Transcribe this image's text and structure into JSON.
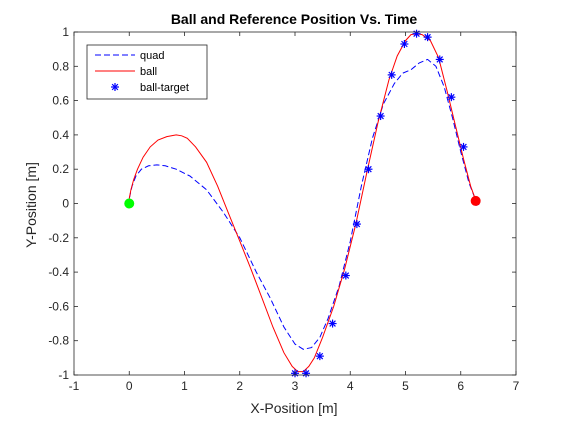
{
  "chart_data": {
    "type": "line",
    "title": "Ball and Reference Position Vs. Time",
    "xlabel": "X-Position [m]",
    "ylabel": "Y-Position [m]",
    "xlim": [
      -1,
      7
    ],
    "ylim": [
      -1,
      1
    ],
    "xticks": [
      -1,
      0,
      1,
      2,
      3,
      4,
      5,
      6,
      7
    ],
    "yticks": [
      -1,
      -0.8,
      -0.6,
      -0.4,
      -0.2,
      0,
      0.2,
      0.4,
      0.6,
      0.8,
      1
    ],
    "xtick_labels": [
      "-1",
      "0",
      "1",
      "2",
      "3",
      "4",
      "5",
      "6",
      "7"
    ],
    "ytick_labels": [
      "-1",
      "-0.8",
      "-0.6",
      "-0.4",
      "-0.2",
      "0",
      "0.2",
      "0.4",
      "0.6",
      "0.8",
      "1"
    ],
    "grid": false,
    "legend_position": "top-left",
    "series": [
      {
        "name": "quad",
        "style": "dashed",
        "color": "#0000ff",
        "x": [
          0,
          0.05,
          0.12,
          0.22,
          0.35,
          0.5,
          0.65,
          0.85,
          1.1,
          1.4,
          1.7,
          2.0,
          2.3,
          2.55,
          2.8,
          3.0,
          3.15,
          3.3,
          3.45,
          3.6,
          3.8,
          4.0,
          4.2,
          4.4,
          4.6,
          4.8,
          4.95,
          5.1,
          5.25,
          5.4,
          5.55,
          5.7,
          5.85,
          6.0,
          6.15,
          6.27
        ],
        "y": [
          0.03,
          0.1,
          0.16,
          0.2,
          0.22,
          0.225,
          0.22,
          0.2,
          0.16,
          0.08,
          -0.05,
          -0.2,
          -0.4,
          -0.55,
          -0.72,
          -0.82,
          -0.85,
          -0.84,
          -0.78,
          -0.67,
          -0.48,
          -0.22,
          0.1,
          0.38,
          0.58,
          0.7,
          0.76,
          0.78,
          0.82,
          0.84,
          0.8,
          0.68,
          0.5,
          0.3,
          0.12,
          0.02
        ]
      },
      {
        "name": "ball",
        "style": "solid",
        "color": "#ff0000",
        "x": [
          0,
          0.03,
          0.08,
          0.15,
          0.25,
          0.38,
          0.52,
          0.68,
          0.85,
          0.95,
          1.05,
          1.2,
          1.4,
          1.6,
          1.8,
          2.0,
          2.2,
          2.4,
          2.6,
          2.8,
          2.95,
          3.05,
          3.15,
          3.25,
          3.35,
          3.5,
          3.7,
          3.9,
          4.1,
          4.3,
          4.5,
          4.7,
          4.85,
          5.0,
          5.1,
          5.2,
          5.3,
          5.45,
          5.6,
          5.75,
          5.9,
          6.05,
          6.18,
          6.27
        ],
        "y": [
          0.03,
          0.08,
          0.14,
          0.2,
          0.27,
          0.33,
          0.37,
          0.39,
          0.4,
          0.395,
          0.38,
          0.33,
          0.24,
          0.1,
          -0.06,
          -0.22,
          -0.38,
          -0.55,
          -0.72,
          -0.87,
          -0.95,
          -0.98,
          -0.98,
          -0.95,
          -0.9,
          -0.78,
          -0.6,
          -0.38,
          -0.12,
          0.18,
          0.47,
          0.72,
          0.86,
          0.95,
          0.985,
          0.99,
          0.985,
          0.95,
          0.85,
          0.66,
          0.46,
          0.26,
          0.1,
          0.02
        ]
      },
      {
        "name": "ball-target",
        "style": "markers",
        "marker": "asterisk",
        "color": "#0000ff",
        "x": [
          3.0,
          3.2,
          3.45,
          3.68,
          3.92,
          4.12,
          4.33,
          4.55,
          4.75,
          4.98,
          5.2,
          5.4,
          5.62,
          5.83,
          6.05,
          6.28
        ],
        "y": [
          -0.99,
          -0.99,
          -0.89,
          -0.7,
          -0.42,
          -0.12,
          0.2,
          0.51,
          0.75,
          0.93,
          0.99,
          0.97,
          0.84,
          0.62,
          0.33,
          0.01
        ]
      }
    ],
    "annotations": [
      {
        "name": "start-marker",
        "x": 0,
        "y": 0,
        "color": "#00ff00"
      },
      {
        "name": "end-marker",
        "x": 6.27,
        "y": 0.015,
        "color": "#ff0000"
      }
    ]
  }
}
